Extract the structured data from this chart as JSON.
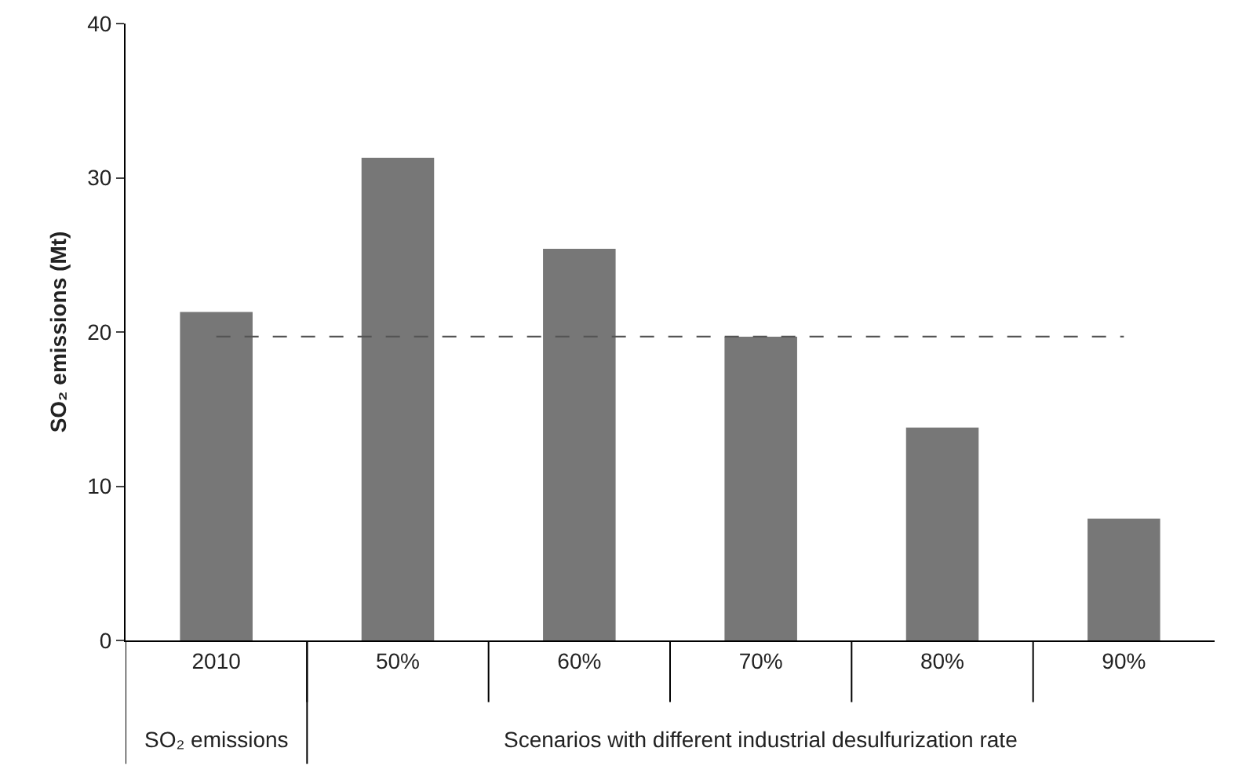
{
  "chart_data": {
    "type": "bar",
    "ylabel": "SO₂ emissions (Mt)",
    "categories": [
      "2010",
      "50%",
      "60%",
      "70%",
      "80%",
      "90%"
    ],
    "values": [
      21.3,
      31.3,
      25.4,
      19.7,
      13.8,
      7.9
    ],
    "color": "#777777",
    "ylim": [
      0,
      40
    ],
    "yticks": [
      0,
      10,
      20,
      30,
      40
    ],
    "grid": false,
    "ref_lines": [
      {
        "axis": "y",
        "value": 19.7,
        "color": "#555555",
        "line_style": "dashed"
      }
    ],
    "annotations": [
      "SO₂ emissions",
      "Scenarios with different industrial desulfurization rate"
    ]
  }
}
